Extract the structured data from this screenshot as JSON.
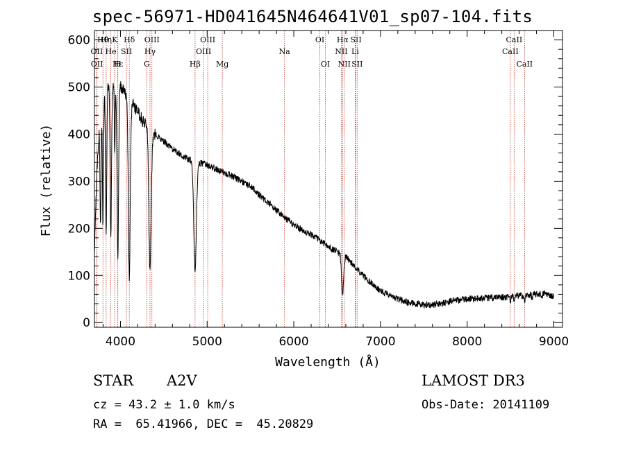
{
  "chart_data": {
    "type": "line",
    "title": "spec-56971-HD041645N464641V01_sp07-104.fits",
    "xlabel": "Wavelength (Å)",
    "ylabel": "Flux (relative)",
    "xlim": [
      3700,
      9100
    ],
    "ylim": [
      -10,
      620
    ],
    "xticks": [
      4000,
      5000,
      6000,
      7000,
      8000,
      9000
    ],
    "yticks": [
      0,
      100,
      200,
      300,
      400,
      500,
      600
    ],
    "continuum_points": [
      [
        3700,
        150
      ],
      [
        3730,
        330
      ],
      [
        3760,
        420
      ],
      [
        3800,
        470
      ],
      [
        3850,
        500
      ],
      [
        3900,
        510
      ],
      [
        3950,
        505
      ],
      [
        4000,
        500
      ],
      [
        4050,
        490
      ],
      [
        4100,
        470
      ],
      [
        4150,
        460
      ],
      [
        4200,
        445
      ],
      [
        4250,
        430
      ],
      [
        4300,
        420
      ],
      [
        4350,
        410
      ],
      [
        4400,
        400
      ],
      [
        4500,
        385
      ],
      [
        4600,
        370
      ],
      [
        4700,
        355
      ],
      [
        4800,
        345
      ],
      [
        4850,
        340
      ],
      [
        4900,
        340
      ],
      [
        5000,
        335
      ],
      [
        5100,
        325
      ],
      [
        5200,
        318
      ],
      [
        5300,
        310
      ],
      [
        5400,
        300
      ],
      [
        5500,
        290
      ],
      [
        5600,
        272
      ],
      [
        5700,
        255
      ],
      [
        5800,
        238
      ],
      [
        5900,
        222
      ],
      [
        6000,
        208
      ],
      [
        6100,
        196
      ],
      [
        6200,
        187
      ],
      [
        6300,
        175
      ],
      [
        6400,
        160
      ],
      [
        6500,
        150
      ],
      [
        6600,
        140
      ],
      [
        6700,
        120
      ],
      [
        6800,
        100
      ],
      [
        6900,
        83
      ],
      [
        7000,
        68
      ],
      [
        7100,
        58
      ],
      [
        7200,
        50
      ],
      [
        7300,
        44
      ],
      [
        7400,
        40
      ],
      [
        7500,
        38
      ],
      [
        7600,
        38
      ],
      [
        7700,
        40
      ],
      [
        7800,
        45
      ],
      [
        7900,
        48
      ],
      [
        8000,
        50
      ],
      [
        8100,
        52
      ],
      [
        8200,
        52
      ],
      [
        8300,
        53
      ],
      [
        8400,
        54
      ],
      [
        8500,
        55
      ],
      [
        8600,
        57
      ],
      [
        8700,
        58
      ],
      [
        8800,
        60
      ],
      [
        8900,
        62
      ],
      [
        9000,
        55
      ]
    ],
    "absorption_lines": [
      {
        "center": 3770,
        "depth": 220,
        "width": 6
      },
      {
        "center": 3798,
        "depth": 260,
        "width": 6
      },
      {
        "center": 3835,
        "depth": 300,
        "width": 7
      },
      {
        "center": 3889,
        "depth": 330,
        "width": 8
      },
      {
        "center": 3934,
        "depth": 150,
        "width": 5
      },
      {
        "center": 3970,
        "depth": 360,
        "width": 9
      },
      {
        "center": 4102,
        "depth": 370,
        "width": 11
      },
      {
        "center": 4341,
        "depth": 305,
        "width": 13
      },
      {
        "center": 4861,
        "depth": 230,
        "width": 15
      },
      {
        "center": 6563,
        "depth": 85,
        "width": 12
      },
      {
        "center": 8498,
        "depth": 10,
        "width": 6
      },
      {
        "center": 8542,
        "depth": 14,
        "width": 6
      },
      {
        "center": 8662,
        "depth": 14,
        "width": 6
      },
      {
        "center": 8750,
        "depth": 10,
        "width": 5
      },
      {
        "center": 8863,
        "depth": 12,
        "width": 5
      }
    ],
    "noise_amplitude": 7,
    "markers": [
      {
        "label": "Hθ",
        "wave": 3798,
        "row": 0
      },
      {
        "label": "Hη",
        "wave": 3835,
        "row": 0
      },
      {
        "label": "K",
        "wave": 3934,
        "row": 0
      },
      {
        "label": "Hδ",
        "wave": 4102,
        "row": 0
      },
      {
        "label": "OIII",
        "wave": 4363,
        "row": 0
      },
      {
        "label": "OIII",
        "wave": 5007,
        "row": 0
      },
      {
        "label": "OI",
        "wave": 6300,
        "row": 0
      },
      {
        "label": "Hα",
        "wave": 6563,
        "row": 0
      },
      {
        "label": "SII",
        "wave": 6717,
        "row": 0
      },
      {
        "label": "CaII",
        "wave": 8542,
        "row": 0
      },
      {
        "label": "OII",
        "wave": 3727,
        "row": 1
      },
      {
        "label": "He",
        "wave": 3889,
        "row": 1
      },
      {
        "label": "SII",
        "wave": 4069,
        "row": 1
      },
      {
        "label": "Hγ",
        "wave": 4341,
        "row": 1
      },
      {
        "label": "OIII",
        "wave": 4959,
        "row": 1
      },
      {
        "label": "Na",
        "wave": 5893,
        "row": 1
      },
      {
        "label": "NII",
        "wave": 6548,
        "row": 1
      },
      {
        "label": "Li",
        "wave": 6708,
        "row": 1
      },
      {
        "label": "CaII",
        "wave": 8498,
        "row": 1
      },
      {
        "label": "OII",
        "wave": 3729,
        "row": 2
      },
      {
        "label": "Hε",
        "wave": 3970,
        "row": 2
      },
      {
        "label": "H",
        "wave": 3968,
        "row": 2
      },
      {
        "label": "G",
        "wave": 4304,
        "row": 2
      },
      {
        "label": "Hβ",
        "wave": 4861,
        "row": 2
      },
      {
        "label": "Mg",
        "wave": 5175,
        "row": 2
      },
      {
        "label": "OI",
        "wave": 6364,
        "row": 2
      },
      {
        "label": "NII",
        "wave": 6583,
        "row": 2
      },
      {
        "label": "SII",
        "wave": 6731,
        "row": 2
      },
      {
        "label": "CaII",
        "wave": 8662,
        "row": 2
      }
    ]
  },
  "info": {
    "object_type": "STAR",
    "subclass": "A2V",
    "survey": "LAMOST DR3",
    "redshift": "cz = 43.2 ± 1.0 km/s",
    "obs_date": "Obs-Date: 20141109",
    "coords": "RA =  65.41966, DEC =  45.20829"
  },
  "colors": {
    "axis": "#000000",
    "spectrum": "#000000",
    "marker_line": "#c0392b",
    "background": "#ffffff"
  }
}
